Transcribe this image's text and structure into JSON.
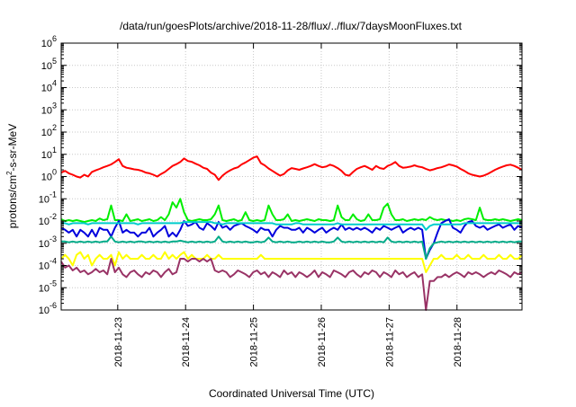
{
  "chart_data": {
    "type": "line",
    "title": "/data/run/goesPlots/archive/2018-11-28/flux/../flux/7daysMoonFluxes.txt",
    "xlabel": "Coordinated Universal Time (UTC)",
    "ylabel": {
      "pre": "protons/cm",
      "sup": "2",
      "post": "-s-sr-MeV"
    },
    "yscale": "log",
    "ylim": [
      1e-06,
      1000000.0
    ],
    "yticks": [
      {
        "exp": "-6"
      },
      {
        "exp": "-5"
      },
      {
        "exp": "-4"
      },
      {
        "exp": "-3"
      },
      {
        "exp": "-2"
      },
      {
        "exp": "-1"
      },
      {
        "exp": "0"
      },
      {
        "exp": "1"
      },
      {
        "exp": "2"
      },
      {
        "exp": "3"
      },
      {
        "exp": "4"
      },
      {
        "exp": "5"
      },
      {
        "exp": "6"
      }
    ],
    "ytick_base": "10",
    "xlim": [
      "2018-11-22T04:00",
      "2018-11-28T23:00"
    ],
    "xticks": [
      "2018-11-23",
      "2018-11-24",
      "2018-11-25",
      "2018-11-26",
      "2018-11-27",
      "2018-11-28"
    ],
    "grid": true,
    "series": [
      {
        "color": "#ff0000",
        "values": [
          1.5,
          1.8,
          1.4,
          1.2,
          1.0,
          0.9,
          1.2,
          1.0,
          1.6,
          1.9,
          2.2,
          2.6,
          3.0,
          3.5,
          4.5,
          6.0,
          3.0,
          2.5,
          2.3,
          2.1,
          2.0,
          1.8,
          1.5,
          1.4,
          1.2,
          1.0,
          1.3,
          1.6,
          2.2,
          3.0,
          3.6,
          4.5,
          6.5,
          5.0,
          4.6,
          3.8,
          3.2,
          2.5,
          2.2,
          1.5,
          1.2,
          0.7,
          1.1,
          1.5,
          1.9,
          2.3,
          2.6,
          3.5,
          4.3,
          5.5,
          7.0,
          8.0,
          4.0,
          3.2,
          2.3,
          1.8,
          1.4,
          1.1,
          1.3,
          1.9,
          2.4,
          2.2,
          2.0,
          2.3,
          2.6,
          3.0,
          3.6,
          3.0,
          2.6,
          2.8,
          3.4,
          3.0,
          2.4,
          1.8,
          1.2,
          1.1,
          1.6,
          2.2,
          2.6,
          3.0,
          2.5,
          2.0,
          3.0,
          2.4,
          2.2,
          3.0,
          3.5,
          4.5,
          3.0,
          2.5,
          2.6,
          2.8,
          3.2,
          2.8,
          2.6,
          2.2,
          1.9,
          2.1,
          2.4,
          2.6,
          3.0,
          3.5,
          3.2,
          2.8,
          2.2,
          1.8,
          1.4,
          1.2,
          1.1,
          1.0,
          1.1,
          1.3,
          1.6,
          2.0,
          2.4,
          2.8,
          3.2,
          3.4,
          3.0,
          2.5,
          2.0
        ]
      },
      {
        "color": "#00ee00",
        "values": [
          0.012,
          0.01,
          0.011,
          0.01,
          0.011,
          0.01,
          0.009,
          0.01,
          0.011,
          0.01,
          0.013,
          0.011,
          0.012,
          0.05,
          0.011,
          0.011,
          0.01,
          0.02,
          0.01,
          0.011,
          0.012,
          0.01,
          0.011,
          0.012,
          0.01,
          0.011,
          0.015,
          0.011,
          0.02,
          0.07,
          0.04,
          0.1,
          0.025,
          0.011,
          0.01,
          0.011,
          0.012,
          0.011,
          0.011,
          0.012,
          0.02,
          0.05,
          0.011,
          0.01,
          0.011,
          0.012,
          0.01,
          0.011,
          0.025,
          0.011,
          0.01,
          0.011,
          0.01,
          0.011,
          0.05,
          0.02,
          0.011,
          0.011,
          0.012,
          0.02,
          0.01,
          0.011,
          0.01,
          0.011,
          0.012,
          0.011,
          0.01,
          0.012,
          0.011,
          0.011,
          0.01,
          0.011,
          0.05,
          0.015,
          0.011,
          0.011,
          0.02,
          0.012,
          0.01,
          0.011,
          0.02,
          0.011,
          0.011,
          0.012,
          0.04,
          0.06,
          0.02,
          0.011,
          0.011,
          0.012,
          0.01,
          0.011,
          0.012,
          0.011,
          0.012,
          0.011,
          0.015,
          0.012,
          0.011,
          0.012,
          0.011,
          0.011,
          0.01,
          0.011,
          0.01,
          0.012,
          0.013,
          0.012,
          0.011,
          0.04,
          0.012,
          0.011,
          0.011,
          0.012,
          0.011,
          0.012,
          0.011,
          0.01,
          0.011,
          0.012,
          0.011
        ]
      },
      {
        "color": "#0000dd",
        "values": [
          0.005,
          0.004,
          0.003,
          0.004,
          0.002,
          0.004,
          0.003,
          0.002,
          0.004,
          0.002,
          0.005,
          0.004,
          0.004,
          0.002,
          0.005,
          0.01,
          0.003,
          0.004,
          0.003,
          0.003,
          0.002,
          0.003,
          0.003,
          0.005,
          0.002,
          0.003,
          0.004,
          0.006,
          0.002,
          0.003,
          0.002,
          0.004,
          0.01,
          0.006,
          0.007,
          0.009,
          0.005,
          0.004,
          0.008,
          0.006,
          0.004,
          0.009,
          0.005,
          0.006,
          0.004,
          0.006,
          0.007,
          0.008,
          0.006,
          0.005,
          0.004,
          0.003,
          0.005,
          0.004,
          0.004,
          0.002,
          0.004,
          0.006,
          0.005,
          0.005,
          0.004,
          0.004,
          0.005,
          0.003,
          0.005,
          0.004,
          0.003,
          0.004,
          0.005,
          0.003,
          0.004,
          0.005,
          0.004,
          0.007,
          0.004,
          0.005,
          0.004,
          0.005,
          0.004,
          0.005,
          0.004,
          0.003,
          0.005,
          0.004,
          0.006,
          0.005,
          0.004,
          0.005,
          0.006,
          0.003,
          0.004,
          0.005,
          0.004,
          0.005,
          0.004,
          0.0002,
          0.0005,
          0.001,
          0.003,
          0.008,
          0.01,
          0.012,
          0.005,
          0.004,
          0.003,
          0.006,
          0.009,
          0.01,
          0.006,
          0.005,
          0.006,
          0.004,
          0.005,
          0.006,
          0.007,
          0.005,
          0.006,
          0.007,
          0.004,
          0.006,
          0.005
        ]
      },
      {
        "color": "#00cccc",
        "values": [
          0.008,
          0.008,
          0.007,
          0.008,
          0.008,
          0.008,
          0.008,
          0.007,
          0.008,
          0.008,
          0.008,
          0.008,
          0.008,
          0.008,
          0.008,
          0.008,
          0.008,
          0.008,
          0.008,
          0.008,
          0.007,
          0.008,
          0.008,
          0.008,
          0.008,
          0.008,
          0.008,
          0.008,
          0.008,
          0.008,
          0.008,
          0.008,
          0.009,
          0.009,
          0.009,
          0.009,
          0.009,
          0.009,
          0.009,
          0.009,
          0.008,
          0.008,
          0.007,
          0.008,
          0.008,
          0.008,
          0.008,
          0.008,
          0.008,
          0.008,
          0.008,
          0.008,
          0.008,
          0.008,
          0.008,
          0.008,
          0.007,
          0.007,
          0.007,
          0.007,
          0.007,
          0.008,
          0.008,
          0.007,
          0.007,
          0.007,
          0.007,
          0.007,
          0.007,
          0.007,
          0.007,
          0.007,
          0.008,
          0.007,
          0.007,
          0.007,
          0.007,
          0.007,
          0.007,
          0.007,
          0.007,
          0.007,
          0.007,
          0.007,
          0.007,
          0.007,
          0.007,
          0.007,
          0.007,
          0.007,
          0.007,
          0.007,
          0.007,
          0.007,
          0.007,
          0.004,
          0.006,
          0.007,
          0.007,
          0.007,
          0.007,
          0.007,
          0.007,
          0.007,
          0.007,
          0.008,
          0.008,
          0.008,
          0.008,
          0.008,
          0.008,
          0.008,
          0.008,
          0.008,
          0.008,
          0.008,
          0.008,
          0.008,
          0.008,
          0.008,
          0.008
        ]
      },
      {
        "color": "#00aa88",
        "values": [
          0.0012,
          0.0012,
          0.0011,
          0.0012,
          0.0011,
          0.0012,
          0.0011,
          0.0012,
          0.0011,
          0.0012,
          0.0011,
          0.0012,
          0.0012,
          0.002,
          0.0012,
          0.0011,
          0.0012,
          0.0011,
          0.0012,
          0.0011,
          0.0012,
          0.0012,
          0.0011,
          0.0012,
          0.0011,
          0.0012,
          0.0011,
          0.0012,
          0.0011,
          0.0012,
          0.0012,
          0.0013,
          0.0012,
          0.0011,
          0.0012,
          0.0011,
          0.0012,
          0.0011,
          0.0012,
          0.0011,
          0.0012,
          0.002,
          0.0012,
          0.0011,
          0.0012,
          0.0011,
          0.0012,
          0.0011,
          0.0012,
          0.0011,
          0.0011,
          0.0012,
          0.0011,
          0.0012,
          0.0018,
          0.0012,
          0.0011,
          0.0012,
          0.0011,
          0.0012,
          0.0011,
          0.0011,
          0.0012,
          0.0011,
          0.0012,
          0.0011,
          0.0012,
          0.0011,
          0.0012,
          0.0011,
          0.0011,
          0.0012,
          0.0018,
          0.0012,
          0.0011,
          0.0012,
          0.0011,
          0.0012,
          0.0011,
          0.0012,
          0.0011,
          0.0012,
          0.0011,
          0.0012,
          0.0011,
          0.0018,
          0.0012,
          0.0011,
          0.0012,
          0.0011,
          0.0012,
          0.0011,
          0.0012,
          0.0011,
          0.0012,
          0.0002,
          0.0006,
          0.001,
          0.0011,
          0.0012,
          0.0011,
          0.0012,
          0.0011,
          0.0012,
          0.0011,
          0.0012,
          0.0011,
          0.0012,
          0.0011,
          0.0012,
          0.0011,
          0.0012,
          0.0011,
          0.0012,
          0.0011,
          0.0012,
          0.0011,
          0.0012,
          0.0011,
          0.0012,
          0.0012
        ]
      },
      {
        "color": "#ffff00",
        "values": [
          0.0002,
          0.0003,
          0.0002,
          0.0001,
          0.0003,
          0.0004,
          0.0002,
          0.0003,
          0.0001,
          0.0002,
          0.0003,
          0.0002,
          0.0002,
          0.0003,
          0.0001,
          0.0004,
          0.0002,
          0.0003,
          0.0002,
          0.0002,
          0.0002,
          0.0003,
          0.0002,
          0.0002,
          0.0003,
          0.0002,
          0.0002,
          0.0004,
          0.0002,
          0.0003,
          0.0002,
          0.0003,
          0.0004,
          0.0002,
          0.0003,
          0.0002,
          0.0002,
          0.0002,
          0.0003,
          0.0002,
          0.0002,
          0.0003,
          0.0002,
          0.0002,
          0.0002,
          0.0002,
          0.0002,
          0.0002,
          0.0002,
          0.0002,
          0.0002,
          0.0002,
          0.0003,
          0.0002,
          0.0002,
          0.0002,
          0.0002,
          0.0002,
          0.0002,
          0.0002,
          0.0002,
          0.0002,
          0.0002,
          0.0002,
          0.0002,
          0.0002,
          0.0002,
          0.0002,
          0.0002,
          0.0002,
          0.0002,
          0.0002,
          0.0002,
          0.0002,
          0.0002,
          0.0002,
          0.0002,
          0.0002,
          0.0002,
          0.0002,
          0.0002,
          0.0002,
          0.0002,
          0.0002,
          0.0002,
          0.0002,
          0.0002,
          0.0002,
          0.0002,
          0.0002,
          0.0002,
          0.0002,
          0.0002,
          0.0002,
          0.0002,
          5e-05,
          0.0001,
          0.0002,
          0.0002,
          0.0003,
          0.0002,
          0.0002,
          0.0002,
          0.0003,
          0.0002,
          0.0002,
          0.0003,
          0.0002,
          0.0002,
          0.0002,
          0.0003,
          0.0002,
          0.0002,
          0.0002,
          0.0003,
          0.0002,
          0.0002,
          0.0003,
          0.0002,
          0.0002,
          0.0003
        ]
      },
      {
        "color": "#993366",
        "values": [
          0.00015,
          8e-05,
          0.0001,
          6e-05,
          8e-05,
          5e-05,
          6e-05,
          4e-05,
          5e-05,
          7e-05,
          5e-05,
          6e-05,
          4e-05,
          0.0002,
          5e-05,
          8e-05,
          4e-05,
          3e-05,
          5e-05,
          6e-05,
          4e-05,
          3e-05,
          5e-05,
          4e-05,
          6e-05,
          5e-05,
          3e-05,
          5e-05,
          7e-05,
          4e-05,
          5e-05,
          0.0002,
          0.0002,
          0.00015,
          0.0002,
          0.0002,
          0.00015,
          0.0002,
          0.00015,
          0.0002,
          6e-05,
          5e-05,
          6e-05,
          5e-05,
          3e-05,
          4e-05,
          6e-05,
          5e-05,
          4e-05,
          3e-05,
          5e-05,
          6e-05,
          4e-05,
          5e-05,
          3e-05,
          5e-05,
          4e-05,
          3e-05,
          6e-05,
          4e-05,
          5e-05,
          3e-05,
          5e-05,
          4e-05,
          3e-05,
          4e-05,
          6e-05,
          3e-05,
          5e-05,
          4e-05,
          3e-05,
          6e-05,
          5e-05,
          4e-05,
          3e-05,
          5e-05,
          6e-05,
          4e-05,
          3e-05,
          5e-05,
          4e-05,
          6e-05,
          5e-05,
          3e-05,
          5e-05,
          4e-05,
          3e-05,
          6e-05,
          4e-05,
          5e-05,
          3e-05,
          4e-05,
          5e-05,
          3e-05,
          4e-05,
          1e-06,
          2e-05,
          2e-05,
          3e-05,
          3e-05,
          4e-05,
          3e-05,
          4e-05,
          5e-05,
          4e-05,
          3e-05,
          5e-05,
          4e-05,
          5e-05,
          4e-05,
          3e-05,
          4e-05,
          5e-05,
          4e-05,
          6e-05,
          5e-05,
          4e-05,
          3e-05,
          5e-05,
          4e-05,
          5e-05
        ]
      }
    ]
  }
}
